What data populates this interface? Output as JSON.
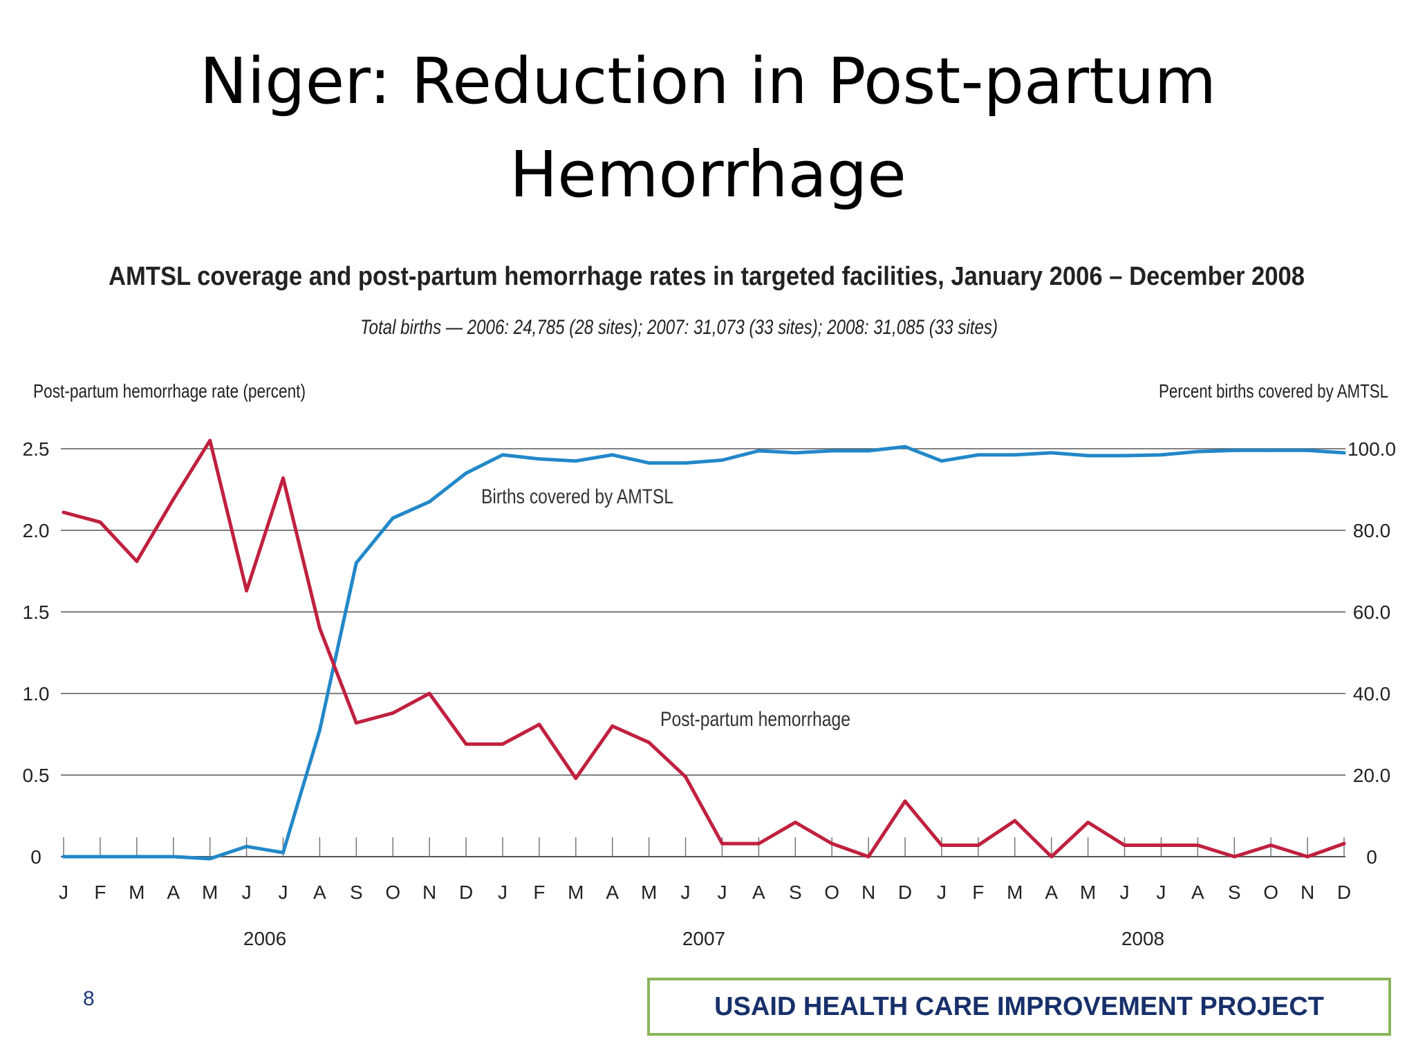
{
  "slide": {
    "title_line1": "Niger: Reduction in Post-partum",
    "title_line2": "Hemorrhage",
    "page_number": "8",
    "footer": "USAID HEALTH CARE IMPROVEMENT PROJECT"
  },
  "colors": {
    "pph": "#c0203f",
    "amtsl": "#2288c8",
    "gridline": "#555555"
  },
  "chart_data": {
    "type": "line",
    "title": "AMTSL coverage and post-partum hemorrhage rates in targeted facilities, January 2006 – December 2008",
    "subtitle": "Total births — 2006: 24,785 (28 sites); 2007: 31,073 (33 sites); 2008: 31,085 (33 sites)",
    "ylabel_left": "Post-partum hemorrhage rate (percent)",
    "ylabel_right": "Percent births covered by AMTSL",
    "ylim_left": [
      0,
      2.5
    ],
    "ylim_right": [
      0,
      100
    ],
    "yticks_left": [
      "0",
      "0.5",
      "1.0",
      "1.5",
      "2.0",
      "2.5"
    ],
    "yticks_right": [
      "0",
      "20.0",
      "40.0",
      "60.0",
      "80.0",
      "100.0"
    ],
    "grid": true,
    "categories": [
      "J",
      "F",
      "M",
      "A",
      "M",
      "J",
      "J",
      "A",
      "S",
      "O",
      "N",
      "D",
      "J",
      "F",
      "M",
      "A",
      "M",
      "J",
      "J",
      "A",
      "S",
      "O",
      "N",
      "D",
      "J",
      "F",
      "M",
      "A",
      "M",
      "J",
      "J",
      "A",
      "S",
      "O",
      "N",
      "D"
    ],
    "years": [
      "2006",
      "2007",
      "2008"
    ],
    "series": [
      {
        "name": "Post-partum hemorrhage",
        "axis": "left",
        "values": [
          2.11,
          2.05,
          1.81,
          2.19,
          2.55,
          1.63,
          2.32,
          1.4,
          0.82,
          0.88,
          1.0,
          0.69,
          0.69,
          0.81,
          0.48,
          0.8,
          0.7,
          0.49,
          0.08,
          0.08,
          0.21,
          0.08,
          0.0,
          0.34,
          0.07,
          0.07,
          0.22,
          0.0,
          0.21,
          0.07,
          0.07,
          0.07,
          0.0,
          0.07,
          0.0,
          0.08
        ]
      },
      {
        "name": "Births covered by AMTSL",
        "axis": "right",
        "values": [
          0,
          0,
          0,
          0,
          -0.5,
          2.5,
          1.0,
          31,
          72,
          83,
          87,
          94,
          98.5,
          97.5,
          97,
          98.5,
          96.5,
          96.5,
          97.2,
          99.5,
          99,
          99.5,
          99.5,
          100.5,
          97,
          98.5,
          98.5,
          99,
          98.3,
          98.3,
          98.5,
          99.3,
          99.6,
          99.6,
          99.6,
          99
        ]
      }
    ]
  }
}
